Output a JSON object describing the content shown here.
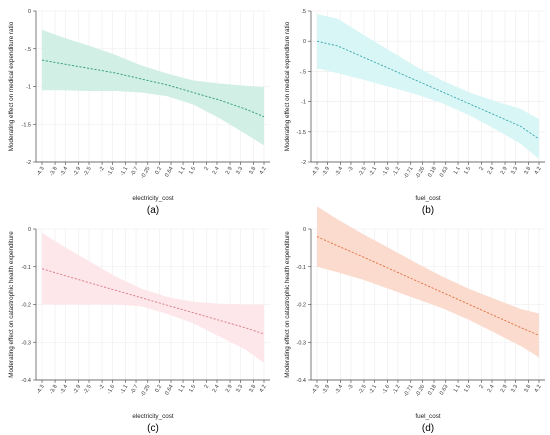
{
  "chart_data": [
    {
      "type": "line",
      "caption": "(a)",
      "xlabel": "electricity_cost",
      "ylabel": "Moderating effect on medical expenditure ratio",
      "x_tick_labels": [
        "-4.3",
        "-3.8",
        "-3.4",
        "-2.9",
        "-2.5",
        "-2",
        "-1.6",
        "-1.1",
        "-0.7",
        "-0.25",
        "0.2",
        "0.64",
        "1.1",
        "1.5",
        "2",
        "2.4",
        "2.9",
        "3.3",
        "3.8",
        "4.2"
      ],
      "x_ticks": [
        -4.3,
        -3.8,
        -3.4,
        -2.9,
        -2.5,
        -2,
        -1.6,
        -1.1,
        -0.7,
        -0.25,
        0.2,
        0.64,
        1.1,
        1.5,
        2,
        2.4,
        2.9,
        3.3,
        3.8,
        4.2
      ],
      "xlim": [
        -4.3,
        4.2
      ],
      "y_tick_labels": [
        "0",
        "-.5",
        "-1",
        "-1.5",
        "-2"
      ],
      "y_ticks": [
        0,
        -0.5,
        -1,
        -1.5,
        -2
      ],
      "ylim": [
        -2,
        0
      ],
      "grid": true,
      "series": [
        {
          "x": [
            -4.3,
            -3.5,
            -2.5,
            -1.5,
            -0.5,
            0.5,
            1.5,
            2.5,
            3.5,
            4.2
          ],
          "y": [
            -0.65,
            -0.7,
            -0.76,
            -0.82,
            -0.9,
            -0.98,
            -1.08,
            -1.18,
            -1.3,
            -1.4
          ],
          "lower": [
            -1.05,
            -1.05,
            -1.06,
            -1.06,
            -1.08,
            -1.13,
            -1.24,
            -1.42,
            -1.63,
            -1.78
          ],
          "upper": [
            -0.25,
            -0.35,
            -0.46,
            -0.58,
            -0.72,
            -0.83,
            -0.92,
            -0.96,
            -0.99,
            -1.01
          ]
        }
      ],
      "colors": {
        "band": "#cfeee3",
        "line": "#2e9b76"
      }
    },
    {
      "type": "line",
      "caption": "(b)",
      "xlabel": "fuel_cost",
      "ylabel": "Moderating effect on medical expenditure ratio",
      "x_tick_labels": [
        "-4.3",
        "-3.9",
        "-3.4",
        "-3",
        "-2.5",
        "-2.1",
        "-1.6",
        "-1.2",
        "-0.71",
        "-0.26",
        "0.18",
        "0.63",
        "1.1",
        "1.5",
        "2",
        "2.4",
        "2.9",
        "3.3",
        "3.8",
        "4.2"
      ],
      "x_ticks": [
        -4.3,
        -3.9,
        -3.4,
        -3,
        -2.5,
        -2.1,
        -1.6,
        -1.2,
        -0.71,
        -0.26,
        0.18,
        0.63,
        1.1,
        1.5,
        2,
        2.4,
        2.9,
        3.3,
        3.8,
        4.2
      ],
      "xlim": [
        -4.3,
        4.2
      ],
      "y_tick_labels": [
        ".5",
        "0",
        "-.5",
        "-1",
        "-1.5",
        "-2"
      ],
      "y_ticks": [
        0.5,
        0,
        -0.5,
        -1,
        -1.5,
        -2
      ],
      "ylim": [
        -2,
        0.5
      ],
      "grid": true,
      "series": [
        {
          "x": [
            -4.3,
            -3.5,
            -2.5,
            -1.5,
            -0.5,
            0.5,
            1.5,
            2.5,
            3.5,
            4.2
          ],
          "y": [
            0,
            -0.08,
            -0.27,
            -0.46,
            -0.65,
            -0.84,
            -1.03,
            -1.22,
            -1.41,
            -1.62
          ],
          "lower": [
            -0.45,
            -0.53,
            -0.64,
            -0.76,
            -0.88,
            -1.03,
            -1.22,
            -1.45,
            -1.7,
            -1.95
          ],
          "upper": [
            0.45,
            0.37,
            0.1,
            -0.16,
            -0.42,
            -0.65,
            -0.84,
            -0.99,
            -1.12,
            -1.29
          ]
        }
      ],
      "colors": {
        "band": "#d7f6f6",
        "line": "#3aa9ad"
      }
    },
    {
      "type": "line",
      "caption": "(c)",
      "xlabel": "electricity_cost",
      "ylabel": "Moderating effect on catastrophic health expenditure",
      "x_tick_labels": [
        "-4.3",
        "-3.8",
        "-3.4",
        "-2.9",
        "-2.5",
        "-2",
        "-1.6",
        "-1.1",
        "-0.7",
        "-0.25",
        "0.2",
        "0.64",
        "1.1",
        "1.5",
        "2",
        "2.4",
        "2.9",
        "3.3",
        "3.8",
        "4.2"
      ],
      "x_ticks": [
        -4.3,
        -3.8,
        -3.4,
        -2.9,
        -2.5,
        -2,
        -1.6,
        -1.1,
        -0.7,
        -0.25,
        0.2,
        0.64,
        1.1,
        1.5,
        2,
        2.4,
        2.9,
        3.3,
        3.8,
        4.2
      ],
      "xlim": [
        -4.3,
        4.2
      ],
      "y_tick_labels": [
        "0",
        "-0.1",
        "-0.2",
        "-0.3",
        "-0.4"
      ],
      "y_ticks": [
        0,
        -0.1,
        -0.2,
        -0.3,
        -0.4
      ],
      "ylim": [
        -0.4,
        0
      ],
      "grid": true,
      "series": [
        {
          "x": [
            -4.3,
            -3.5,
            -2.5,
            -1.5,
            -0.5,
            0.5,
            1.5,
            2.5,
            3.5,
            4.2
          ],
          "y": [
            -0.105,
            -0.122,
            -0.142,
            -0.162,
            -0.182,
            -0.202,
            -0.222,
            -0.242,
            -0.262,
            -0.278
          ],
          "lower": [
            -0.2,
            -0.2,
            -0.2,
            -0.2,
            -0.205,
            -0.225,
            -0.25,
            -0.285,
            -0.32,
            -0.355
          ],
          "upper": [
            -0.01,
            -0.045,
            -0.085,
            -0.125,
            -0.158,
            -0.18,
            -0.193,
            -0.198,
            -0.2,
            -0.2
          ]
        }
      ],
      "colors": {
        "band": "#fde6e9",
        "line": "#d97a86"
      }
    },
    {
      "type": "line",
      "caption": "(d)",
      "xlabel": "fuel_cost",
      "ylabel": "Moderating effect on catastrophic health expenditure",
      "x_tick_labels": [
        "-4.3",
        "-3.9",
        "-3.4",
        "-3",
        "-2.5",
        "-2.1",
        "-1.6",
        "-1.2",
        "-0.71",
        "-0.26",
        "0.18",
        "0.63",
        "1.1",
        "1.5",
        "2",
        "2.4",
        "2.9",
        "3.3",
        "3.8",
        "4.2"
      ],
      "x_ticks": [
        -4.3,
        -3.9,
        -3.4,
        -3,
        -2.5,
        -2.1,
        -1.6,
        -1.2,
        -0.71,
        -0.26,
        0.18,
        0.63,
        1.1,
        1.5,
        2,
        2.4,
        2.9,
        3.3,
        3.8,
        4.2
      ],
      "xlim": [
        -4.3,
        4.2
      ],
      "y_tick_labels": [
        "0",
        "-0.1",
        "-0.2",
        "-0.3",
        "-0.4"
      ],
      "y_ticks": [
        0,
        -0.1,
        -0.2,
        -0.3,
        -0.4
      ],
      "ylim": [
        -0.4,
        0
      ],
      "grid": true,
      "series": [
        {
          "x": [
            -4.3,
            -3.5,
            -2.5,
            -1.5,
            -0.5,
            0.5,
            1.5,
            2.5,
            3.5,
            4.2
          ],
          "y": [
            -0.02,
            -0.045,
            -0.075,
            -0.106,
            -0.137,
            -0.168,
            -0.199,
            -0.23,
            -0.261,
            -0.282
          ],
          "lower": [
            -0.1,
            -0.115,
            -0.135,
            -0.16,
            -0.185,
            -0.21,
            -0.24,
            -0.275,
            -0.31,
            -0.34
          ],
          "upper": [
            0.06,
            0.025,
            -0.015,
            -0.052,
            -0.09,
            -0.126,
            -0.158,
            -0.185,
            -0.212,
            -0.224
          ]
        }
      ],
      "colors": {
        "band": "#fcd9cc",
        "line": "#e0703e"
      }
    }
  ]
}
